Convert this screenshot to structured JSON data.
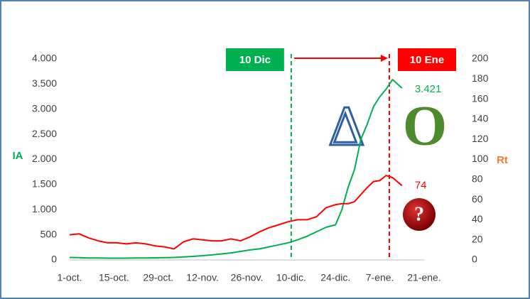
{
  "chart_data": {
    "type": "line",
    "x": [
      0,
      3,
      6,
      9,
      12,
      15,
      18,
      21,
      24,
      27,
      30,
      33,
      36,
      39,
      42,
      45,
      48,
      51,
      54,
      57,
      60,
      63,
      66,
      69,
      72,
      75,
      78,
      81,
      84,
      86,
      88,
      90,
      92,
      94,
      96,
      98,
      100,
      102,
      105
    ],
    "xlim": [
      0,
      112
    ],
    "xticks": [
      {
        "value": 0,
        "label": "1-oct."
      },
      {
        "value": 14,
        "label": "15-oct."
      },
      {
        "value": 28,
        "label": "29-oct."
      },
      {
        "value": 42,
        "label": "12-nov."
      },
      {
        "value": 56,
        "label": "26-nov."
      },
      {
        "value": 70,
        "label": "10-dic."
      },
      {
        "value": 84,
        "label": "24-dic."
      },
      {
        "value": 98,
        "label": "7-ene."
      },
      {
        "value": 112,
        "label": "21-ene."
      }
    ],
    "ylabel": "IA",
    "y2label": "Rt",
    "ylim": [
      0,
      4000
    ],
    "yticks": [
      0,
      500,
      {
        "value": 1000,
        "label": "1.000"
      },
      {
        "value": 1500,
        "label": "1.500"
      },
      {
        "value": 2000,
        "label": "2.000"
      },
      {
        "value": 2500,
        "label": "2.500"
      },
      {
        "value": 3000,
        "label": "3.000"
      },
      {
        "value": 3500,
        "label": "3.500"
      },
      {
        "value": 4000,
        "label": "4.000"
      }
    ],
    "y2lim": [
      0,
      200
    ],
    "y2ticks": [
      0,
      20,
      40,
      60,
      80,
      100,
      120,
      140,
      160,
      180,
      200
    ],
    "series": [
      {
        "name": "IA",
        "color": "#00b050",
        "values": [
          50,
          45,
          40,
          38,
          35,
          35,
          35,
          38,
          40,
          42,
          45,
          50,
          60,
          70,
          85,
          100,
          120,
          140,
          170,
          200,
          220,
          260,
          300,
          340,
          400,
          470,
          560,
          650,
          700,
          1000,
          1450,
          1800,
          2400,
          2700,
          3050,
          3250,
          3400,
          3590,
          3421
        ],
        "value_labels": [
          null,
          null,
          null,
          null,
          null,
          null,
          null,
          null,
          null,
          null,
          null,
          null,
          null,
          null,
          null,
          null,
          null,
          null,
          null,
          null,
          null,
          null,
          null,
          null,
          null,
          null,
          null,
          null,
          null,
          null,
          null,
          null,
          null,
          null,
          null,
          null,
          null,
          null,
          "3.421"
        ]
      },
      {
        "name": "Rt",
        "color": "#ff0000",
        "axis": "y2",
        "values": [
          25,
          26,
          22,
          19,
          17,
          17,
          16,
          17,
          16,
          14,
          13,
          11,
          18,
          21,
          20,
          19,
          19,
          21,
          19,
          23,
          28,
          32,
          35,
          38,
          40,
          40,
          43,
          52,
          55,
          56,
          56,
          58,
          65,
          72,
          78,
          79,
          84,
          82,
          74
        ]
      }
    ],
    "markers": [
      {
        "x": 70,
        "label": "10 Dic",
        "color": "#00b050"
      },
      {
        "x": 101,
        "label": "10 Ene",
        "color": "#ff0000"
      }
    ],
    "symbols": [
      "Δ",
      "O",
      "?"
    ]
  }
}
